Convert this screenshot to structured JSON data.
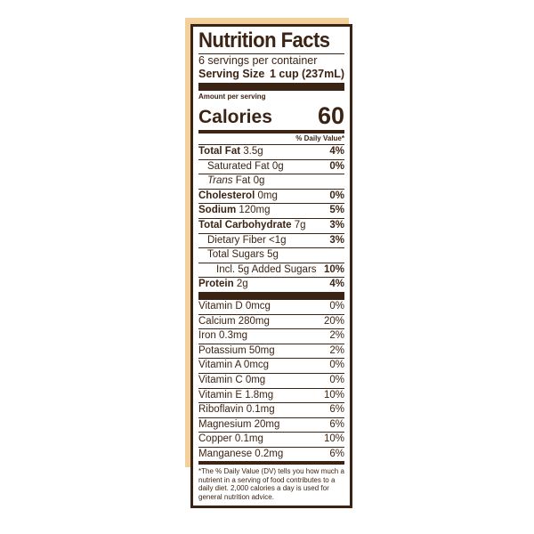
{
  "label": {
    "title": "Nutrition Facts",
    "servings_per_container": "6 servings per container",
    "serving_size_label": "Serving Size",
    "serving_size_value": "1 cup (237mL)",
    "amount_per_serving": "Amount per serving",
    "calories_label": "Calories",
    "calories_value": "60",
    "dv_header": "% Daily Value*",
    "nutrients": [
      {
        "bold_name": "Total Fat",
        "amount": "3.5g",
        "pct": "4%"
      },
      {
        "name": "Saturated Fat",
        "amount": "0g",
        "pct": "0%"
      },
      {
        "italic_name": "Trans",
        "name": "Fat",
        "amount": "0g",
        "pct": ""
      },
      {
        "bold_name": "Cholesterol",
        "amount": "0mg",
        "pct": "0%"
      },
      {
        "bold_name": "Sodium",
        "amount": "120mg",
        "pct": "5%"
      },
      {
        "bold_name": "Total Carbohydrate",
        "amount": "7g",
        "pct": "3%"
      },
      {
        "name": "Dietary Fiber",
        "amount": "<1g",
        "pct": "3%"
      },
      {
        "name": "Total Sugars",
        "amount": "5g",
        "pct": ""
      },
      {
        "name": "Incl. 5g Added Sugars",
        "amount": "",
        "pct": "10%"
      },
      {
        "bold_name": "Protein",
        "amount": "2g",
        "pct": "4%"
      }
    ],
    "vitamins": [
      {
        "name": "Vitamin D 0mcg",
        "pct": "0%"
      },
      {
        "name": "Calcium 280mg",
        "pct": "20%"
      },
      {
        "name": "Iron 0.3mg",
        "pct": "2%"
      },
      {
        "name": "Potassium 50mg",
        "pct": "2%"
      },
      {
        "name": "Vitamin A 0mcg",
        "pct": "0%"
      },
      {
        "name": "Vitamin C 0mg",
        "pct": "0%"
      },
      {
        "name": "Vitamin E 1.8mg",
        "pct": "10%"
      },
      {
        "name": "Riboflavin 0.1mg",
        "pct": "6%"
      },
      {
        "name": "Magnesium 20mg",
        "pct": "6%"
      },
      {
        "name": "Copper 0.1mg",
        "pct": "10%"
      },
      {
        "name": "Manganese 0.2mg",
        "pct": "6%"
      }
    ],
    "footnote": "*The % Daily Value (DV) tells you how much a nutrient in a serving of food contributes to a daily diet. 2,000 calories a day is used for general nutrition advice."
  },
  "colors": {
    "ink": "#3c2414",
    "background_tan": "#f3cf9c"
  }
}
